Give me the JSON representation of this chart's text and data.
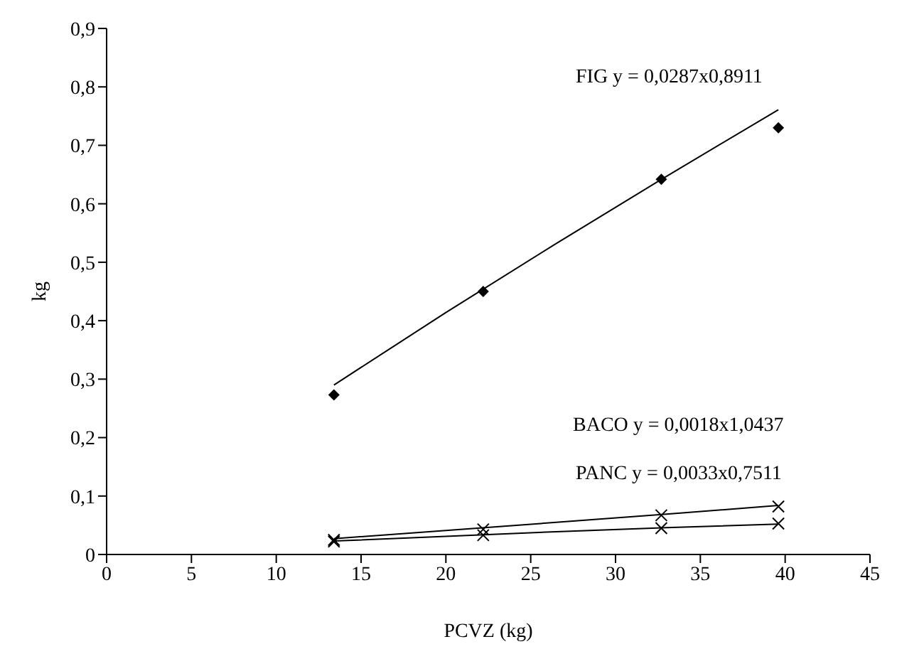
{
  "chart_data": {
    "type": "scatter",
    "xlabel": "PCVZ (kg)",
    "ylabel": "kg",
    "xlim": [
      0,
      45
    ],
    "xticks": [
      0,
      5,
      10,
      15,
      20,
      25,
      30,
      35,
      40,
      45
    ],
    "ylim": [
      0,
      0.9
    ],
    "yticks": [
      {
        "value": 0,
        "label": "0"
      },
      {
        "value": 0.1,
        "label": "0,1"
      },
      {
        "value": 0.2,
        "label": "0,2"
      },
      {
        "value": 0.3,
        "label": "0,3"
      },
      {
        "value": 0.4,
        "label": "0,4"
      },
      {
        "value": 0.5,
        "label": "0,5"
      },
      {
        "value": 0.6,
        "label": "0,6"
      },
      {
        "value": 0.7,
        "label": "0,7"
      },
      {
        "value": 0.8,
        "label": "0,8"
      },
      {
        "value": 0.9,
        "label": "0,9"
      }
    ],
    "grid": false,
    "legend": false,
    "series": [
      {
        "marker": "diamond",
        "color": "#000000",
        "x": [
          13.4,
          22.2,
          32.7,
          39.6
        ],
        "values": [
          0.273,
          0.45,
          0.642,
          0.73
        ]
      },
      {
        "marker": "cross",
        "color": "#000000",
        "x": [
          13.4,
          22.2,
          32.7,
          39.6
        ],
        "values": [
          0.025,
          0.043,
          0.067,
          0.082
        ]
      },
      {
        "marker": "cross",
        "color": "#000000",
        "x": [
          13.4,
          22.2,
          32.7,
          39.6
        ],
        "values": [
          0.022,
          0.033,
          0.045,
          0.053
        ]
      },
      {
        "type": "line",
        "marker": "none",
        "color": "#000000",
        "x": [
          13.4,
          20,
          26.5,
          33,
          39.6
        ],
        "values": [
          0.29,
          0.414,
          0.532,
          0.647,
          0.761
        ]
      },
      {
        "type": "line",
        "marker": "none",
        "color": "#000000",
        "x": [
          13.4,
          20,
          26.5,
          33,
          39.6
        ],
        "values": [
          0.027,
          0.041,
          0.055,
          0.069,
          0.084
        ]
      },
      {
        "type": "line",
        "marker": "none",
        "color": "#000000",
        "x": [
          13.4,
          20,
          26.5,
          33,
          39.6
        ],
        "values": [
          0.023,
          0.031,
          0.039,
          0.046,
          0.052
        ]
      }
    ],
    "annotations": [
      "FIG y = 0,0287x0,8911",
      "BACO y = 0,0018x1,0437",
      "PANC y = 0,0033x0,7511"
    ]
  }
}
